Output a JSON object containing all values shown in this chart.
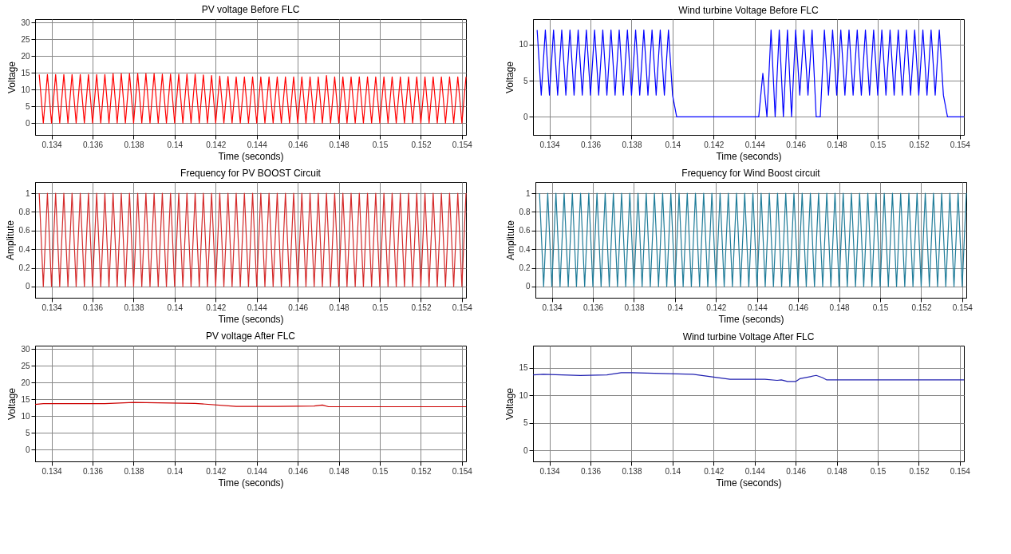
{
  "chart_data": [
    {
      "type": "line",
      "title": "PV voltage Before FLC",
      "xlabel": "Time (seconds)",
      "ylabel": "Voltage",
      "color": "#ff0000",
      "grid": true,
      "xlim": [
        0.1332,
        0.1542
      ],
      "xticks": [
        0.134,
        0.136,
        0.138,
        0.14,
        0.142,
        0.144,
        0.146,
        0.148,
        0.15,
        0.152,
        0.154
      ],
      "ylim": [
        -3.5,
        31
      ],
      "yticks": [
        0,
        5,
        10,
        15,
        20,
        25,
        30
      ],
      "x": [
        0.1334,
        0.1336,
        0.1338,
        0.134,
        0.1342,
        0.1344,
        0.1346,
        0.1348,
        0.135,
        0.1352,
        0.1354,
        0.1356,
        0.1358,
        0.136,
        0.1362,
        0.1364,
        0.1366,
        0.1368,
        0.137,
        0.1372,
        0.1374,
        0.1376,
        0.1378,
        0.138,
        0.1382,
        0.1384,
        0.1386,
        0.1388,
        0.139,
        0.1392,
        0.1394,
        0.1396,
        0.1398,
        0.14,
        0.1402,
        0.1404,
        0.1406,
        0.1408,
        0.141,
        0.1412,
        0.1414,
        0.1416,
        0.1418,
        0.142,
        0.1422,
        0.1424,
        0.1426,
        0.1428,
        0.143,
        0.1432,
        0.1434,
        0.1436,
        0.1438,
        0.144,
        0.1442,
        0.1444,
        0.1446,
        0.1448,
        0.145,
        0.1452,
        0.1454,
        0.1456,
        0.1458,
        0.146,
        0.1462,
        0.1464,
        0.1466,
        0.1468,
        0.147,
        0.1472,
        0.1474,
        0.1476,
        0.1478,
        0.148,
        0.1482,
        0.1484,
        0.1486,
        0.1488,
        0.149,
        0.1492,
        0.1494,
        0.1496,
        0.1498,
        0.15,
        0.1502,
        0.1504,
        0.1506,
        0.1508,
        0.151,
        0.1512,
        0.1514,
        0.1516,
        0.1518,
        0.152,
        0.1522,
        0.1524,
        0.1526,
        0.1528,
        0.153,
        0.1532,
        0.1534,
        0.1536,
        0.1538,
        0.154,
        0.1542
      ],
      "values": [
        14.5,
        0,
        14.5,
        0,
        14.5,
        0,
        14.5,
        0,
        14.5,
        0,
        14.5,
        0,
        14.5,
        0,
        14.5,
        0,
        14.5,
        0,
        14.8,
        0,
        14.8,
        0,
        14.8,
        0,
        14.8,
        0,
        14.8,
        0,
        14.8,
        0,
        14.6,
        0,
        14.6,
        0,
        14.6,
        0,
        14.6,
        0,
        14.6,
        0,
        14.4,
        0,
        14.2,
        0,
        14.0,
        0,
        13.9,
        0,
        13.8,
        0,
        13.8,
        0,
        13.8,
        0,
        13.8,
        0,
        13.8,
        0,
        13.8,
        0,
        13.8,
        0,
        13.8,
        0,
        13.8,
        0,
        13.8,
        0,
        13.8,
        0,
        14.2,
        0,
        13.8,
        0,
        13.8,
        0,
        13.8,
        0,
        13.8,
        0,
        13.8,
        0,
        13.8,
        0,
        13.8,
        0,
        13.8,
        0,
        13.8,
        0,
        13.8,
        0,
        13.8,
        0,
        13.8,
        0,
        13.8,
        0,
        13.8,
        0,
        13.8,
        0,
        13.8,
        0,
        13.8
      ]
    },
    {
      "type": "line",
      "title": "Wind turbine Voltage Before FLC",
      "xlabel": "Time (seconds)",
      "ylabel": "Voltage",
      "color": "#0000ff",
      "grid": true,
      "xlim": [
        0.1332,
        0.1542
      ],
      "xticks": [
        0.134,
        0.136,
        0.138,
        0.14,
        0.142,
        0.144,
        0.146,
        0.148,
        0.15,
        0.152,
        0.154
      ],
      "ylim": [
        -2.5,
        13.5
      ],
      "yticks": [
        0,
        5,
        10
      ],
      "x": [
        0.1334,
        0.1336,
        0.1338,
        0.134,
        0.1342,
        0.1344,
        0.1346,
        0.1348,
        0.135,
        0.1352,
        0.1354,
        0.1356,
        0.1358,
        0.136,
        0.1362,
        0.1364,
        0.1366,
        0.1368,
        0.137,
        0.1372,
        0.1374,
        0.1376,
        0.1378,
        0.138,
        0.1382,
        0.1384,
        0.1386,
        0.1388,
        0.139,
        0.1392,
        0.1394,
        0.1396,
        0.1398,
        0.14,
        0.1402,
        0.1404,
        0.1406,
        0.1408,
        0.141,
        0.1412,
        0.1414,
        0.1416,
        0.1418,
        0.142,
        0.1422,
        0.1424,
        0.1426,
        0.1428,
        0.143,
        0.1432,
        0.1434,
        0.1436,
        0.1438,
        0.144,
        0.1442,
        0.1444,
        0.1446,
        0.1448,
        0.145,
        0.1452,
        0.1454,
        0.1456,
        0.1458,
        0.146,
        0.1462,
        0.1464,
        0.1466,
        0.1468,
        0.147,
        0.1472,
        0.1474,
        0.1476,
        0.1478,
        0.148,
        0.1482,
        0.1484,
        0.1486,
        0.1488,
        0.149,
        0.1492,
        0.1494,
        0.1496,
        0.1498,
        0.15,
        0.1502,
        0.1504,
        0.1506,
        0.1508,
        0.151,
        0.1512,
        0.1514,
        0.1516,
        0.1518,
        0.152,
        0.1522,
        0.1524,
        0.1526,
        0.1528,
        0.153,
        0.1532,
        0.1534,
        0.1536,
        0.1538,
        0.154,
        0.1542
      ],
      "values": [
        12,
        3,
        12,
        3,
        12,
        3,
        12,
        3,
        12,
        3,
        12,
        3,
        12,
        3,
        12,
        3,
        12,
        3,
        12,
        3,
        12,
        3,
        12,
        3,
        12,
        3,
        12,
        3,
        12,
        3,
        12,
        3,
        12,
        3,
        0,
        0,
        0,
        0,
        0,
        0,
        0,
        0,
        0,
        0,
        0,
        0,
        0,
        0,
        0,
        0,
        0,
        0,
        0,
        0,
        0,
        6,
        0,
        12,
        0,
        12,
        0,
        12,
        0,
        12,
        3,
        12,
        3,
        12,
        0,
        0,
        12,
        3,
        12,
        3,
        12,
        3,
        12,
        3,
        12,
        3,
        12,
        3,
        12,
        3,
        12,
        3,
        12,
        3,
        12,
        3,
        12,
        3,
        12,
        3,
        12,
        3,
        12,
        3,
        12,
        3,
        0,
        0,
        0,
        0,
        0
      ]
    },
    {
      "type": "line",
      "title": "Frequency for PV BOOST Circuit",
      "xlabel": "Time (seconds)",
      "ylabel": "Amplitute",
      "color": "#d42a2a",
      "grid": true,
      "xlim": [
        0.1332,
        0.1542
      ],
      "xticks": [
        0.134,
        0.136,
        0.138,
        0.14,
        0.142,
        0.144,
        0.146,
        0.148,
        0.15,
        0.152,
        0.154
      ],
      "ylim": [
        -0.12,
        1.12
      ],
      "yticks": [
        0,
        0.2,
        0.4,
        0.6,
        0.8,
        1
      ],
      "x": [
        0.1334,
        0.1336,
        0.1338,
        0.134,
        0.1342,
        0.1344,
        0.1346,
        0.1348,
        0.135,
        0.1352,
        0.1354,
        0.1356,
        0.1358,
        0.136,
        0.1362,
        0.1364,
        0.1366,
        0.1368,
        0.137,
        0.1372,
        0.1374,
        0.1376,
        0.1378,
        0.138,
        0.1382,
        0.1384,
        0.1386,
        0.1388,
        0.139,
        0.1392,
        0.1394,
        0.1396,
        0.1398,
        0.14,
        0.1402,
        0.1404,
        0.1406,
        0.1408,
        0.141,
        0.1412,
        0.1414,
        0.1416,
        0.1418,
        0.142,
        0.1422,
        0.1424,
        0.1426,
        0.1428,
        0.143,
        0.1432,
        0.1434,
        0.1436,
        0.1438,
        0.144,
        0.1442,
        0.1444,
        0.1446,
        0.1448,
        0.145,
        0.1452,
        0.1454,
        0.1456,
        0.1458,
        0.146,
        0.1462,
        0.1464,
        0.1466,
        0.1468,
        0.147,
        0.1472,
        0.1474,
        0.1476,
        0.1478,
        0.148,
        0.1482,
        0.1484,
        0.1486,
        0.1488,
        0.149,
        0.1492,
        0.1494,
        0.1496,
        0.1498,
        0.15,
        0.1502,
        0.1504,
        0.1506,
        0.1508,
        0.151,
        0.1512,
        0.1514,
        0.1516,
        0.1518,
        0.152,
        0.1522,
        0.1524,
        0.1526,
        0.1528,
        0.153,
        0.1532,
        0.1534,
        0.1536,
        0.1538,
        0.154,
        0.1542
      ],
      "values": [
        1,
        0,
        1,
        0,
        1,
        0,
        1,
        0,
        1,
        0,
        1,
        0,
        1,
        0,
        1,
        0,
        1,
        0,
        1,
        0,
        1,
        0,
        1,
        0,
        1,
        0,
        1,
        0,
        1,
        0,
        1,
        0,
        1,
        0,
        1,
        0,
        1,
        0,
        1,
        0,
        1,
        0,
        1,
        0,
        1,
        0,
        1,
        0,
        1,
        0,
        1,
        0,
        1,
        0,
        1,
        0,
        1,
        0,
        1,
        0,
        1,
        0,
        1,
        0,
        1,
        0,
        1,
        0,
        1,
        0,
        1,
        0,
        1,
        0,
        1,
        0,
        1,
        0,
        1,
        0,
        1,
        0,
        1,
        0,
        1,
        0,
        1,
        0,
        1,
        0,
        1,
        0,
        1,
        0,
        1,
        0,
        1,
        0,
        1,
        0,
        1,
        0,
        1,
        0,
        1
      ]
    },
    {
      "type": "line",
      "title": "Frequency for Wind Boost circuit",
      "xlabel": "Time (seconds)",
      "ylabel": "Amplitute",
      "color": "#1f7c99",
      "grid": true,
      "xlim": [
        0.1332,
        0.1542
      ],
      "xticks": [
        0.134,
        0.136,
        0.138,
        0.14,
        0.142,
        0.144,
        0.146,
        0.148,
        0.15,
        0.152,
        0.154
      ],
      "ylim": [
        -0.12,
        1.12
      ],
      "yticks": [
        0,
        0.2,
        0.4,
        0.6,
        0.8,
        1
      ],
      "x": [
        0.1334,
        0.1336,
        0.1338,
        0.134,
        0.1342,
        0.1344,
        0.1346,
        0.1348,
        0.135,
        0.1352,
        0.1354,
        0.1356,
        0.1358,
        0.136,
        0.1362,
        0.1364,
        0.1366,
        0.1368,
        0.137,
        0.1372,
        0.1374,
        0.1376,
        0.1378,
        0.138,
        0.1382,
        0.1384,
        0.1386,
        0.1388,
        0.139,
        0.1392,
        0.1394,
        0.1396,
        0.1398,
        0.14,
        0.1402,
        0.1404,
        0.1406,
        0.1408,
        0.141,
        0.1412,
        0.1414,
        0.1416,
        0.1418,
        0.142,
        0.1422,
        0.1424,
        0.1426,
        0.1428,
        0.143,
        0.1432,
        0.1434,
        0.1436,
        0.1438,
        0.144,
        0.1442,
        0.1444,
        0.1446,
        0.1448,
        0.145,
        0.1452,
        0.1454,
        0.1456,
        0.1458,
        0.146,
        0.1462,
        0.1464,
        0.1466,
        0.1468,
        0.147,
        0.1472,
        0.1474,
        0.1476,
        0.1478,
        0.148,
        0.1482,
        0.1484,
        0.1486,
        0.1488,
        0.149,
        0.1492,
        0.1494,
        0.1496,
        0.1498,
        0.15,
        0.1502,
        0.1504,
        0.1506,
        0.1508,
        0.151,
        0.1512,
        0.1514,
        0.1516,
        0.1518,
        0.152,
        0.1522,
        0.1524,
        0.1526,
        0.1528,
        0.153,
        0.1532,
        0.1534,
        0.1536,
        0.1538,
        0.154,
        0.1542
      ],
      "values": [
        1,
        0,
        1,
        0,
        1,
        0,
        1,
        0,
        1,
        0,
        1,
        0,
        1,
        0,
        1,
        0,
        1,
        0,
        1,
        0,
        1,
        0,
        1,
        0,
        1,
        0,
        1,
        0,
        1,
        0,
        1,
        0,
        1,
        0,
        1,
        0,
        1,
        0,
        1,
        0,
        1,
        0,
        1,
        0,
        1,
        0,
        1,
        0,
        1,
        0,
        1,
        0,
        1,
        0,
        1,
        0,
        1,
        0,
        1,
        0,
        1,
        0,
        1,
        0,
        1,
        0,
        1,
        0,
        1,
        0,
        1,
        0,
        1,
        0,
        1,
        0,
        1,
        0,
        1,
        0,
        1,
        0,
        1,
        0,
        1,
        0,
        1,
        0,
        1,
        0,
        1,
        0,
        1,
        0,
        1,
        0,
        1,
        0,
        1,
        0,
        1,
        0,
        1,
        0,
        1
      ]
    },
    {
      "type": "line",
      "title": "PV voltage After FLC",
      "xlabel": "Time (seconds)",
      "ylabel": "Voltage",
      "color": "#cc0000",
      "grid": true,
      "xlim": [
        0.1332,
        0.1542
      ],
      "xticks": [
        0.134,
        0.136,
        0.138,
        0.14,
        0.142,
        0.144,
        0.146,
        0.148,
        0.15,
        0.152,
        0.154
      ],
      "ylim": [
        -3.5,
        31
      ],
      "yticks": [
        0,
        5,
        10,
        15,
        20,
        25,
        30
      ],
      "x": [
        0.1332,
        0.1336,
        0.1366,
        0.138,
        0.141,
        0.143,
        0.145,
        0.1468,
        0.1472,
        0.1475,
        0.15,
        0.1542
      ],
      "values": [
        13.5,
        13.7,
        13.7,
        14.1,
        13.8,
        12.9,
        12.9,
        13.0,
        13.3,
        12.8,
        12.8,
        12.8
      ]
    },
    {
      "type": "line",
      "title": "Wind turbine Voltage After FLC",
      "xlabel": "Time (seconds)",
      "ylabel": "Voltage",
      "color": "#2020b0",
      "grid": true,
      "xlim": [
        0.1332,
        0.1542
      ],
      "xticks": [
        0.134,
        0.136,
        0.138,
        0.14,
        0.142,
        0.144,
        0.146,
        0.148,
        0.15,
        0.152,
        0.154
      ],
      "ylim": [
        -2,
        19
      ],
      "yticks": [
        0,
        5,
        10,
        15
      ],
      "x": [
        0.1332,
        0.1337,
        0.1355,
        0.1368,
        0.1375,
        0.138,
        0.141,
        0.1428,
        0.1445,
        0.1451,
        0.1453,
        0.1456,
        0.146,
        0.1462,
        0.147,
        0.1473,
        0.1475,
        0.1542
      ],
      "values": [
        13.7,
        13.8,
        13.6,
        13.7,
        14.1,
        14.1,
        13.8,
        12.9,
        12.9,
        12.7,
        12.8,
        12.5,
        12.5,
        13.0,
        13.6,
        13.2,
        12.8,
        12.8
      ]
    }
  ]
}
